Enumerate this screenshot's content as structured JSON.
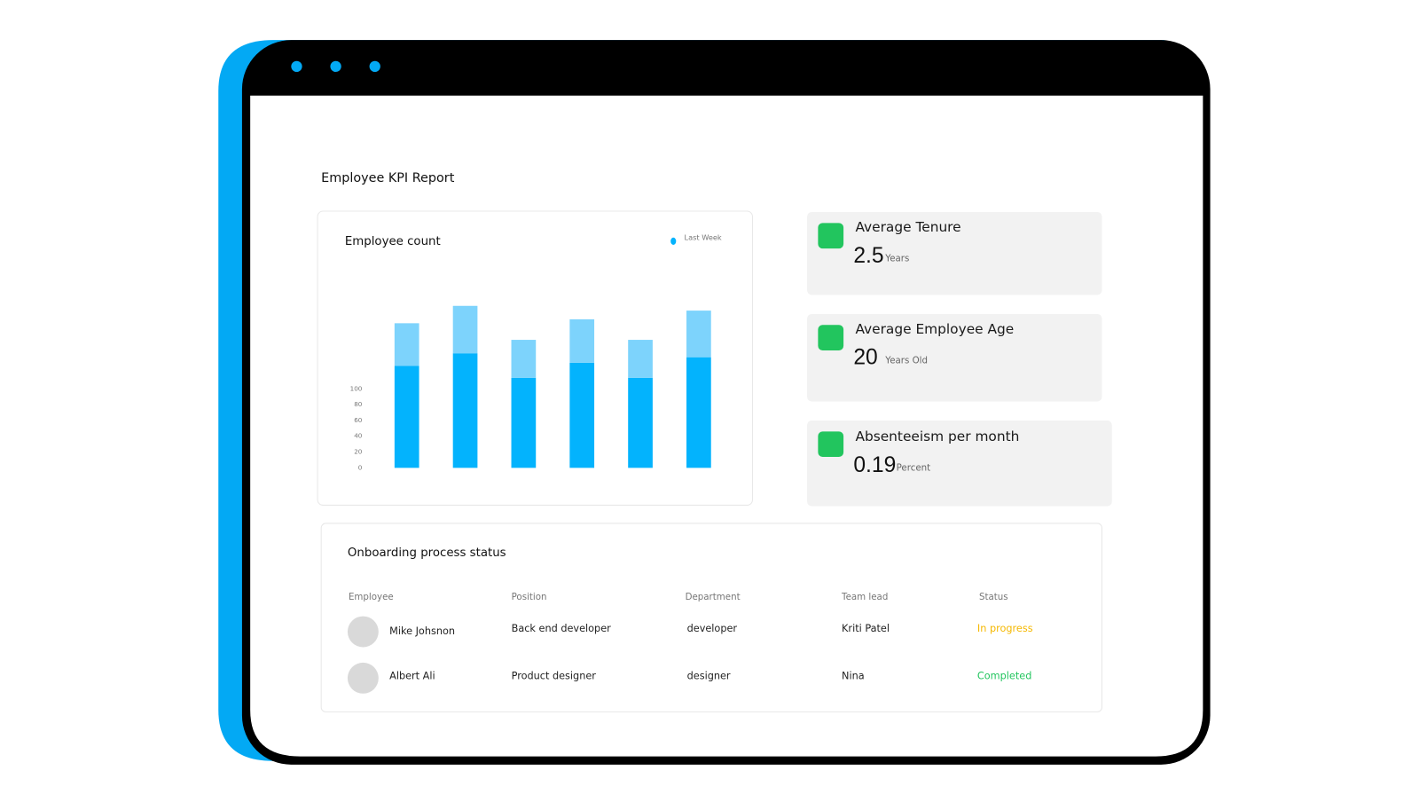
{
  "header": {
    "title": "Employee KPI Report"
  },
  "chart_data": {
    "type": "bar",
    "stacked": true,
    "title": "Employee count",
    "categories": [
      null,
      null,
      null,
      null,
      null,
      null
    ],
    "series": [
      {
        "name": "Last Week",
        "color": "#03b3fd",
        "values": [
          129,
          145,
          114,
          133,
          114,
          140
        ]
      },
      {
        "color": "#7dd3fc",
        "values": [
          54,
          60,
          48,
          55,
          48,
          59
        ]
      }
    ],
    "ylim": [
      0,
      220
    ],
    "yticks": [
      0,
      20,
      40,
      60,
      80,
      100
    ],
    "grid": false,
    "legend": "top-right"
  },
  "kpis": [
    {
      "title": "Average Tenure",
      "value": 2.5,
      "unit": "Years"
    },
    {
      "title": "Average Employee Age",
      "value": 20,
      "unit": "Years Old"
    },
    {
      "title": "Absenteeism per month",
      "value": 0.19,
      "unit": "Percent"
    }
  ],
  "table": {
    "title": "Onboarding process status",
    "columns": [
      "Employee",
      "Position",
      "Department",
      "Team lead",
      "Status"
    ],
    "rows": [
      [
        "Mike Johsnon",
        "Back end developer",
        "developer",
        "Kriti Patel",
        "In progress"
      ],
      [
        "Albert Ali",
        "Product designer",
        "designer",
        "Nina",
        "Completed"
      ]
    ]
  }
}
